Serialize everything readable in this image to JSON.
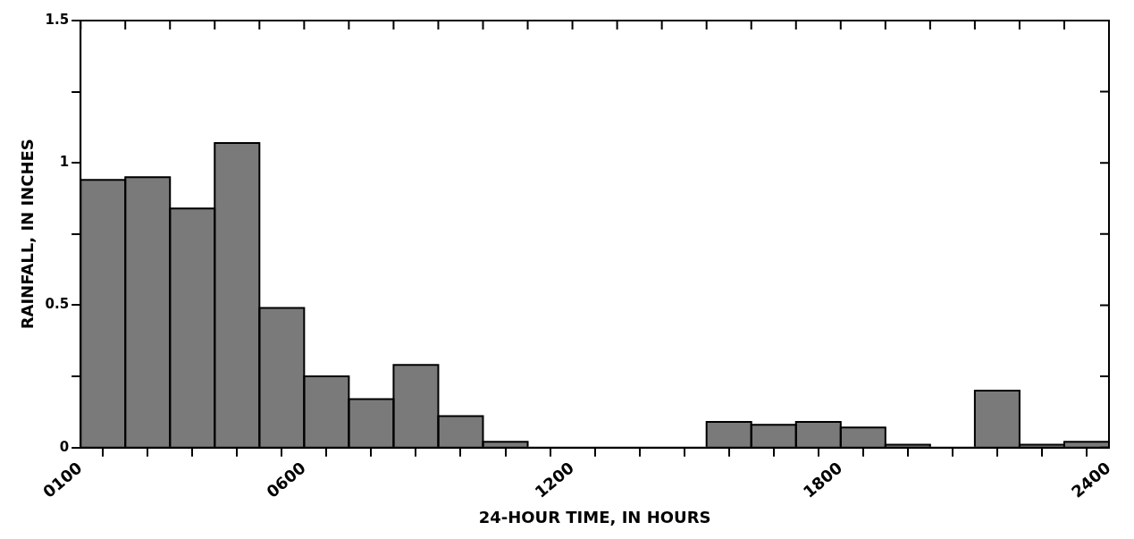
{
  "chart_data": {
    "type": "histogram",
    "xlabel": "24-HOUR TIME, IN HOURS",
    "ylabel": "RAINFALL, IN INCHES",
    "bins": [
      100,
      200,
      300,
      400,
      500,
      600,
      700,
      800,
      900,
      1000,
      1100,
      1200,
      1300,
      1400,
      1500,
      1600,
      1700,
      1800,
      1900,
      2000,
      2100,
      2200,
      2300,
      2400
    ],
    "values": [
      0.94,
      0.95,
      0.84,
      1.07,
      0.49,
      0.25,
      0.17,
      0.29,
      0.11,
      0.02,
      0,
      0,
      0,
      0,
      0.09,
      0.08,
      0.09,
      0.07,
      0.01,
      0,
      0.2,
      0.01,
      0.02
    ],
    "color": "#7a7a7a",
    "xlim": [
      100,
      2400
    ],
    "xticks": [
      {
        "value": 100,
        "label": "0100"
      },
      {
        "value": 200,
        "label": null
      },
      {
        "value": 300,
        "label": null
      },
      {
        "value": 400,
        "label": null
      },
      {
        "value": 500,
        "label": null
      },
      {
        "value": 600,
        "label": "0600"
      },
      {
        "value": 700,
        "label": null
      },
      {
        "value": 800,
        "label": null
      },
      {
        "value": 900,
        "label": null
      },
      {
        "value": 1000,
        "label": null
      },
      {
        "value": 1100,
        "label": null
      },
      {
        "value": 1200,
        "label": "1200"
      },
      {
        "value": 1300,
        "label": null
      },
      {
        "value": 1400,
        "label": null
      },
      {
        "value": 1500,
        "label": null
      },
      {
        "value": 1600,
        "label": null
      },
      {
        "value": 1700,
        "label": null
      },
      {
        "value": 1800,
        "label": "1800"
      },
      {
        "value": 1900,
        "label": null
      },
      {
        "value": 2000,
        "label": null
      },
      {
        "value": 2100,
        "label": null
      },
      {
        "value": 2200,
        "label": null
      },
      {
        "value": 2300,
        "label": null
      },
      {
        "value": 2400,
        "label": "2400"
      }
    ],
    "ylim": [
      0,
      1.5
    ],
    "yticks": [
      {
        "value": 0,
        "label": "0"
      },
      {
        "value": 0.25,
        "label": null
      },
      {
        "value": 0.5,
        "label": "0.5"
      },
      {
        "value": 0.75,
        "label": null
      },
      {
        "value": 1,
        "label": "1"
      },
      {
        "value": 1.25,
        "label": null
      },
      {
        "value": 1.5,
        "label": "1.5"
      }
    ],
    "grid": false
  }
}
